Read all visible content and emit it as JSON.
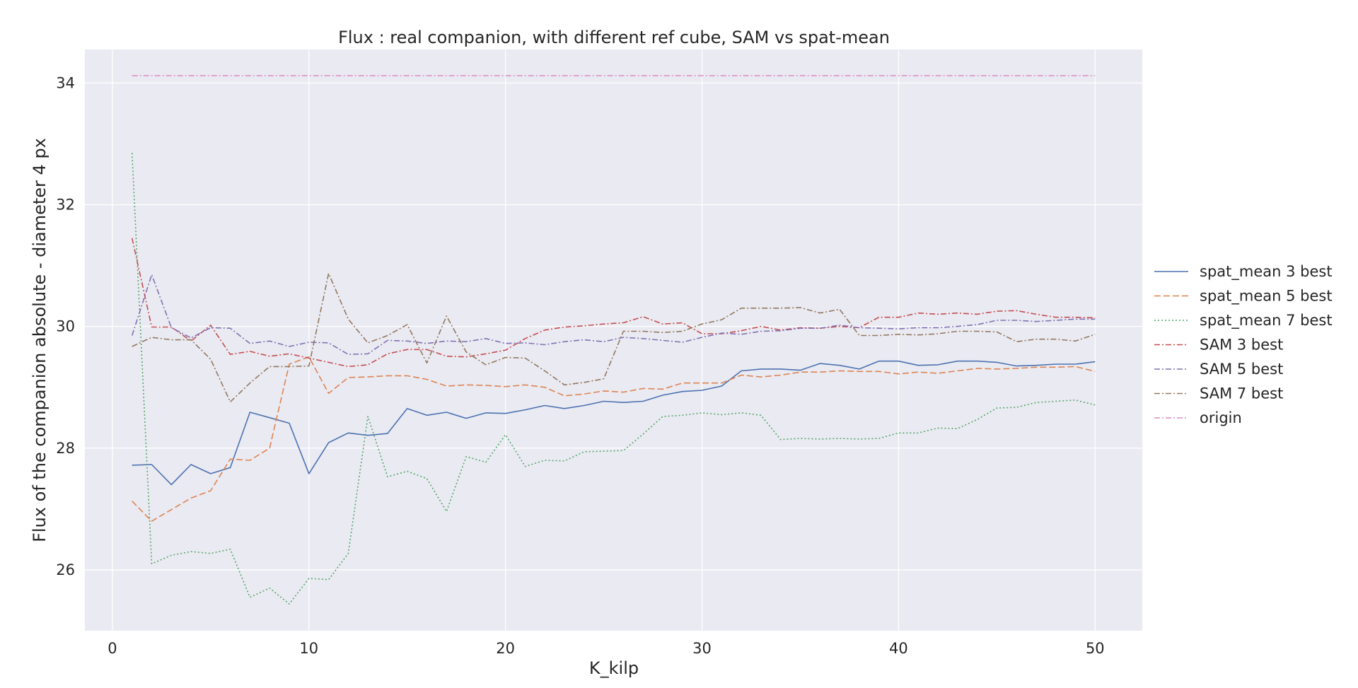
{
  "chart_data": {
    "type": "line",
    "title": "Flux : real companion, with different ref cube, SAM vs spat-mean",
    "xlabel": "K_kilp",
    "ylabel": "Flux of the companion absolute - diameter 4 px",
    "xlim": [
      -1.4,
      52.4
    ],
    "ylim": [
      25.0,
      34.55
    ],
    "xticks": [
      0,
      10,
      20,
      30,
      40,
      50
    ],
    "yticks": [
      26,
      28,
      30,
      32,
      34
    ],
    "grid": true,
    "legend_position": "right-outside",
    "x": [
      1,
      2,
      3,
      4,
      5,
      6,
      7,
      8,
      9,
      10,
      11,
      12,
      13,
      14,
      15,
      16,
      17,
      18,
      19,
      20,
      21,
      22,
      23,
      24,
      25,
      26,
      27,
      28,
      29,
      30,
      31,
      32,
      33,
      34,
      35,
      36,
      37,
      38,
      39,
      40,
      41,
      42,
      43,
      44,
      45,
      46,
      47,
      48,
      49,
      50
    ],
    "series": [
      {
        "name": "spat_mean 3 best",
        "color": "#4c72b0",
        "dash": "solid",
        "values": [
          27.72,
          27.73,
          27.4,
          27.73,
          27.58,
          27.68,
          28.59,
          28.5,
          28.41,
          27.58,
          28.09,
          28.25,
          28.21,
          28.24,
          28.65,
          28.54,
          28.59,
          28.49,
          28.58,
          28.57,
          28.63,
          28.7,
          28.65,
          28.7,
          28.77,
          28.75,
          28.77,
          28.87,
          28.93,
          28.95,
          29.02,
          29.27,
          29.3,
          29.3,
          29.28,
          29.39,
          29.36,
          29.3,
          29.43,
          29.43,
          29.36,
          29.37,
          29.43,
          29.43,
          29.41,
          29.35,
          29.36,
          29.38,
          29.38,
          29.42
        ]
      },
      {
        "name": "spat_mean 5 best",
        "color": "#dd8452",
        "dash": "dashed",
        "values": [
          27.13,
          26.8,
          26.99,
          27.18,
          27.3,
          27.82,
          27.8,
          28.0,
          29.38,
          29.5,
          28.9,
          29.16,
          29.17,
          29.19,
          29.19,
          29.13,
          29.02,
          29.04,
          29.03,
          29.01,
          29.04,
          29.0,
          28.86,
          28.89,
          28.94,
          28.92,
          28.98,
          28.97,
          29.07,
          29.07,
          29.07,
          29.2,
          29.17,
          29.2,
          29.25,
          29.25,
          29.27,
          29.26,
          29.26,
          29.22,
          29.25,
          29.23,
          29.27,
          29.31,
          29.3,
          29.31,
          29.33,
          29.33,
          29.34,
          29.26
        ]
      },
      {
        "name": "spat_mean 7 best",
        "color": "#55a868",
        "dash": "dotted",
        "values": [
          32.85,
          26.1,
          26.24,
          26.3,
          26.27,
          26.34,
          25.55,
          25.7,
          25.44,
          25.86,
          25.84,
          26.27,
          28.52,
          27.53,
          27.62,
          27.5,
          26.96,
          27.86,
          27.77,
          28.22,
          27.7,
          27.8,
          27.79,
          27.94,
          27.95,
          27.96,
          28.23,
          28.52,
          28.54,
          28.58,
          28.55,
          28.58,
          28.54,
          28.14,
          28.16,
          28.15,
          28.16,
          28.15,
          28.16,
          28.25,
          28.25,
          28.33,
          28.32,
          28.47,
          28.66,
          28.67,
          28.75,
          28.77,
          28.79,
          28.71
        ]
      },
      {
        "name": "SAM 3 best",
        "color": "#c44e52",
        "dash": "dashdot",
        "values": [
          31.45,
          29.99,
          29.99,
          29.76,
          30.02,
          29.54,
          29.59,
          29.51,
          29.55,
          29.48,
          29.41,
          29.34,
          29.37,
          29.55,
          29.62,
          29.62,
          29.51,
          29.5,
          29.55,
          29.61,
          29.8,
          29.94,
          29.99,
          30.01,
          30.04,
          30.06,
          30.16,
          30.04,
          30.06,
          29.88,
          29.88,
          29.93,
          30.0,
          29.94,
          29.98,
          29.97,
          30.0,
          29.98,
          30.15,
          30.15,
          30.22,
          30.2,
          30.22,
          30.2,
          30.25,
          30.26,
          30.2,
          30.15,
          30.15,
          30.14
        ]
      },
      {
        "name": "SAM 5 best",
        "color": "#8172b3",
        "dash": "dashdot",
        "values": [
          29.85,
          30.85,
          29.98,
          29.81,
          29.98,
          29.97,
          29.72,
          29.76,
          29.67,
          29.74,
          29.73,
          29.54,
          29.55,
          29.77,
          29.76,
          29.72,
          29.76,
          29.75,
          29.8,
          29.72,
          29.73,
          29.7,
          29.75,
          29.78,
          29.75,
          29.82,
          29.8,
          29.77,
          29.74,
          29.82,
          29.89,
          29.87,
          29.92,
          29.93,
          29.97,
          29.97,
          30.02,
          29.98,
          29.97,
          29.96,
          29.98,
          29.98,
          30.0,
          30.03,
          30.1,
          30.1,
          30.08,
          30.1,
          30.12,
          30.12
        ]
      },
      {
        "name": "SAM 7 best",
        "color": "#937860",
        "dash": "dashdot",
        "values": [
          29.67,
          29.82,
          29.78,
          29.78,
          29.46,
          28.76,
          29.07,
          29.34,
          29.34,
          29.35,
          30.87,
          30.12,
          29.73,
          29.85,
          30.03,
          29.4,
          30.17,
          29.58,
          29.37,
          29.49,
          29.48,
          29.27,
          29.04,
          29.08,
          29.14,
          29.92,
          29.92,
          29.9,
          29.92,
          30.04,
          30.11,
          30.3,
          30.3,
          30.3,
          30.31,
          30.22,
          30.28,
          29.85,
          29.85,
          29.87,
          29.86,
          29.88,
          29.92,
          29.92,
          29.91,
          29.75,
          29.79,
          29.79,
          29.76,
          29.87
        ]
      },
      {
        "name": "origin",
        "color": "#da8bc3",
        "dash": "dashdot",
        "values": [
          34.12,
          34.12,
          34.12,
          34.12,
          34.12,
          34.12,
          34.12,
          34.12,
          34.12,
          34.12,
          34.12,
          34.12,
          34.12,
          34.12,
          34.12,
          34.12,
          34.12,
          34.12,
          34.12,
          34.12,
          34.12,
          34.12,
          34.12,
          34.12,
          34.12,
          34.12,
          34.12,
          34.12,
          34.12,
          34.12,
          34.12,
          34.12,
          34.12,
          34.12,
          34.12,
          34.12,
          34.12,
          34.12,
          34.12,
          34.12,
          34.12,
          34.12,
          34.12,
          34.12,
          34.12,
          34.12,
          34.12,
          34.12,
          34.12,
          34.12
        ]
      }
    ]
  }
}
